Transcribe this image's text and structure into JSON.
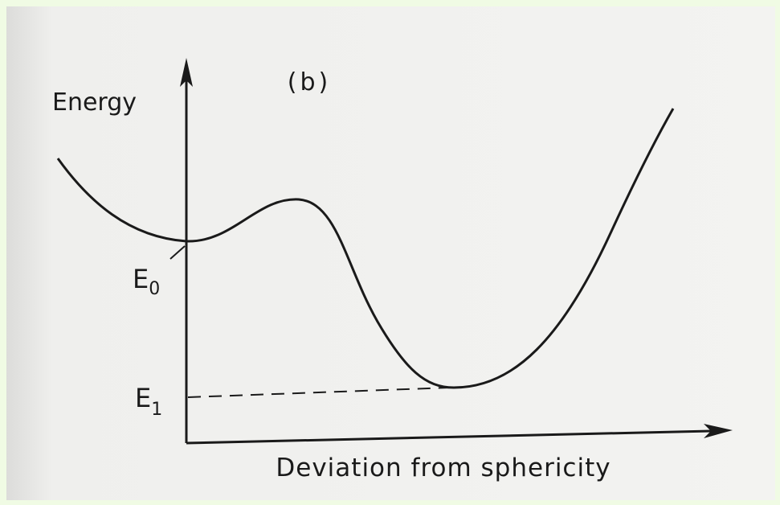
{
  "panel_label": "(b)",
  "y_axis": {
    "label": "Energy"
  },
  "x_axis": {
    "label": "Deviation from sphericity"
  },
  "levels": [
    {
      "symbol": "E",
      "subscript": "0"
    },
    {
      "symbol": "E",
      "subscript": "1"
    }
  ]
}
